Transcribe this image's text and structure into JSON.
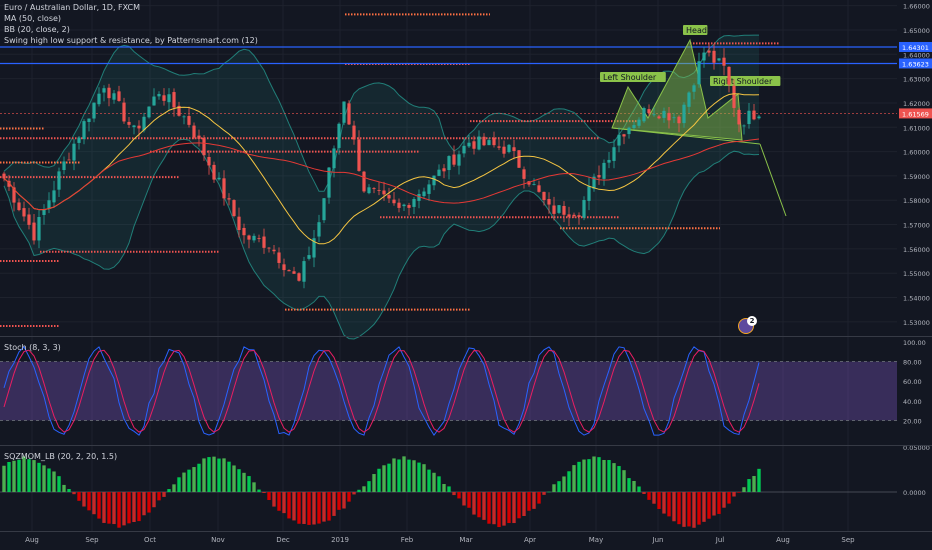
{
  "header": {
    "symbol_title": "Euro / Australian Dollar, 1D, FXCM",
    "ma_legend": "MA (50, close)",
    "bb_legend": "BB (20, close, 2)",
    "swing_legend": "Swing high low support & resistance, by Patternsmart.com (12)"
  },
  "badge": {
    "count": "2"
  },
  "stoch": {
    "legend": "Stoch (8, 3, 3)",
    "ticks": [
      "100.00",
      "80.00",
      "60.00",
      "40.00",
      "20.00"
    ]
  },
  "momentum": {
    "legend": "SQZMOM_LB (20, 2, 20, 1.5)",
    "ticks": [
      "0.05000",
      "0.0000"
    ]
  },
  "x_axis": {
    "labels": [
      "Aug",
      "Sep",
      "Oct",
      "Nov",
      "Dec",
      "2019",
      "Feb",
      "Mar",
      "Apr",
      "May",
      "Jun",
      "Jul",
      "Aug",
      "Sep"
    ]
  },
  "colors": {
    "up": "#26a69a",
    "down": "#ef5350",
    "background": "#131722",
    "price_label": "#ef5350",
    "blue_level": "#2962ff",
    "stoch_band": "#7e57c2"
  },
  "chart_data": {
    "type": "candlestick",
    "title": "Euro / Australian Dollar, 1D, FXCM",
    "y_axis": {
      "ticks": [
        "1.66000",
        "1.65000",
        "1.64000",
        "1.63000",
        "1.62000",
        "1.61000",
        "1.60000",
        "1.59000",
        "1.58000",
        "1.57000",
        "1.56000",
        "1.55000",
        "1.54000",
        "1.53000"
      ],
      "range": [
        1.525,
        1.6615
      ]
    },
    "price_labels": [
      {
        "value": 1.64301,
        "text": "1.64301",
        "color": "#2962ff"
      },
      {
        "value": 1.63623,
        "text": "1.63623",
        "color": "#2962ff"
      },
      {
        "value": 1.61569,
        "text": "1.61569",
        "color": "#ef5350"
      }
    ],
    "key_points": [
      {
        "x": 0,
        "close": 1.589
      },
      {
        "x": 6,
        "close": 1.566
      },
      {
        "x": 12,
        "close": 1.595
      },
      {
        "x": 20,
        "close": 1.628
      },
      {
        "x": 26,
        "close": 1.608
      },
      {
        "x": 31,
        "close": 1.625
      },
      {
        "x": 37,
        "close": 1.612
      },
      {
        "x": 42,
        "close": 1.591
      },
      {
        "x": 48,
        "close": 1.565
      },
      {
        "x": 53,
        "close": 1.562
      },
      {
        "x": 59,
        "close": 1.546
      },
      {
        "x": 63,
        "close": 1.571
      },
      {
        "x": 68,
        "close": 1.622
      },
      {
        "x": 72,
        "close": 1.585
      },
      {
        "x": 79,
        "close": 1.576
      },
      {
        "x": 86,
        "close": 1.589
      },
      {
        "x": 93,
        "close": 1.604
      },
      {
        "x": 101,
        "close": 1.601
      },
      {
        "x": 109,
        "close": 1.576
      },
      {
        "x": 115,
        "close": 1.576
      },
      {
        "x": 123,
        "close": 1.607
      },
      {
        "x": 129,
        "close": 1.618
      },
      {
        "x": 135,
        "close": 1.614
      },
      {
        "x": 140,
        "close": 1.641
      },
      {
        "x": 144,
        "close": 1.634
      },
      {
        "x": 147,
        "close": 1.612
      },
      {
        "x": 151,
        "close": 1.617
      }
    ],
    "pattern": {
      "name": "Head and Shoulders",
      "labels": [
        "Left Shoulder",
        "Head",
        "Right Shoulder"
      ]
    },
    "support_resistance": [
      1.6564,
      1.636,
      1.6125,
      1.6095,
      1.6055,
      1.6,
      1.5955,
      1.5895,
      1.573,
      1.5685,
      1.5588,
      1.555,
      1.535,
      1.5283,
      1.6445
    ]
  }
}
